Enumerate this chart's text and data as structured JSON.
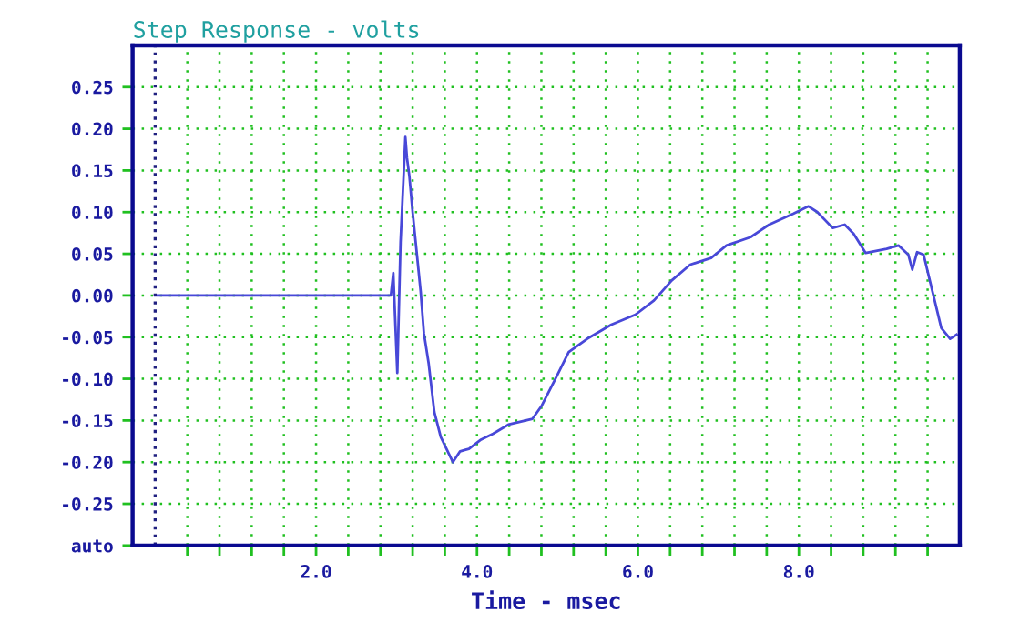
{
  "chart_data": {
    "type": "line",
    "title": "Step Response - volts",
    "xlabel": "Time - msec",
    "x": [
      0,
      2.93,
      2.96,
      3.01,
      3.05,
      3.11,
      3.13,
      3.16,
      3.2,
      3.3,
      3.34,
      3.4,
      3.47,
      3.55,
      3.7,
      3.79,
      3.9,
      4.05,
      4.2,
      4.39,
      4.69,
      4.8,
      4.99,
      5.14,
      5.37,
      5.67,
      5.97,
      6.2,
      6.42,
      6.65,
      6.91,
      7.1,
      7.4,
      7.63,
      7.93,
      8.12,
      8.23,
      8.42,
      8.57,
      8.68,
      8.83,
      9.09,
      9.24,
      9.36,
      9.41,
      9.47,
      9.55,
      9.66,
      9.77,
      9.88,
      9.96
    ],
    "series": [
      {
        "color": "#4848d8",
        "values": [
          0,
          0,
          0.027,
          -0.093,
          0.064,
          0.19,
          0.165,
          0.143,
          0.1,
          0.005,
          -0.045,
          -0.082,
          -0.14,
          -0.17,
          -0.2,
          -0.187,
          -0.184,
          -0.173,
          -0.166,
          -0.155,
          -0.148,
          -0.133,
          -0.097,
          -0.068,
          -0.052,
          -0.035,
          -0.023,
          -0.006,
          0.018,
          0.037,
          0.045,
          0.06,
          0.07,
          0.085,
          0.098,
          0.107,
          0.1,
          0.081,
          0.085,
          0.074,
          0.051,
          0.056,
          0.06,
          0.049,
          0.031,
          0.052,
          0.049,
          0.005,
          -0.039,
          -0.052,
          -0.047
        ]
      }
    ],
    "xlim": [
      -0.28,
      10.0
    ],
    "ylim": [
      -0.3,
      0.3
    ],
    "xticks": [
      {
        "value": 0.4,
        "label": null
      },
      {
        "value": 0.8,
        "label": null
      },
      {
        "value": 1.2,
        "label": null
      },
      {
        "value": 1.6,
        "label": null
      },
      {
        "value": 2.0,
        "label": "2.0"
      },
      {
        "value": 2.4,
        "label": null
      },
      {
        "value": 2.8,
        "label": null
      },
      {
        "value": 3.2,
        "label": null
      },
      {
        "value": 3.6,
        "label": null
      },
      {
        "value": 4.0,
        "label": "4.0"
      },
      {
        "value": 4.4,
        "label": null
      },
      {
        "value": 4.8,
        "label": null
      },
      {
        "value": 5.2,
        "label": null
      },
      {
        "value": 5.6,
        "label": null
      },
      {
        "value": 6.0,
        "label": "6.0"
      },
      {
        "value": 6.4,
        "label": null
      },
      {
        "value": 6.8,
        "label": null
      },
      {
        "value": 7.2,
        "label": null
      },
      {
        "value": 7.6,
        "label": null
      },
      {
        "value": 8.0,
        "label": "8.0"
      },
      {
        "value": 8.4,
        "label": null
      },
      {
        "value": 8.8,
        "label": null
      },
      {
        "value": 9.2,
        "label": null
      },
      {
        "value": 9.6,
        "label": null
      }
    ],
    "yticks": [
      {
        "value": -0.3,
        "label": "auto"
      },
      {
        "value": -0.25,
        "label": "-0.25"
      },
      {
        "value": -0.2,
        "label": "-0.20"
      },
      {
        "value": -0.15,
        "label": "-0.15"
      },
      {
        "value": -0.1,
        "label": "-0.10"
      },
      {
        "value": -0.05,
        "label": "-0.05"
      },
      {
        "value": 0.0,
        "label": "0.00"
      },
      {
        "value": 0.05,
        "label": "0.05"
      },
      {
        "value": 0.1,
        "label": "0.10"
      },
      {
        "value": 0.15,
        "label": "0.15"
      },
      {
        "value": 0.2,
        "label": "0.20"
      },
      {
        "value": 0.25,
        "label": "0.25"
      }
    ],
    "ref_lines": [
      {
        "axis": "x",
        "value": 0,
        "color": "#202080",
        "line_style": "dotted"
      }
    ],
    "grid": true,
    "line_style": "solid",
    "marker": "none"
  }
}
